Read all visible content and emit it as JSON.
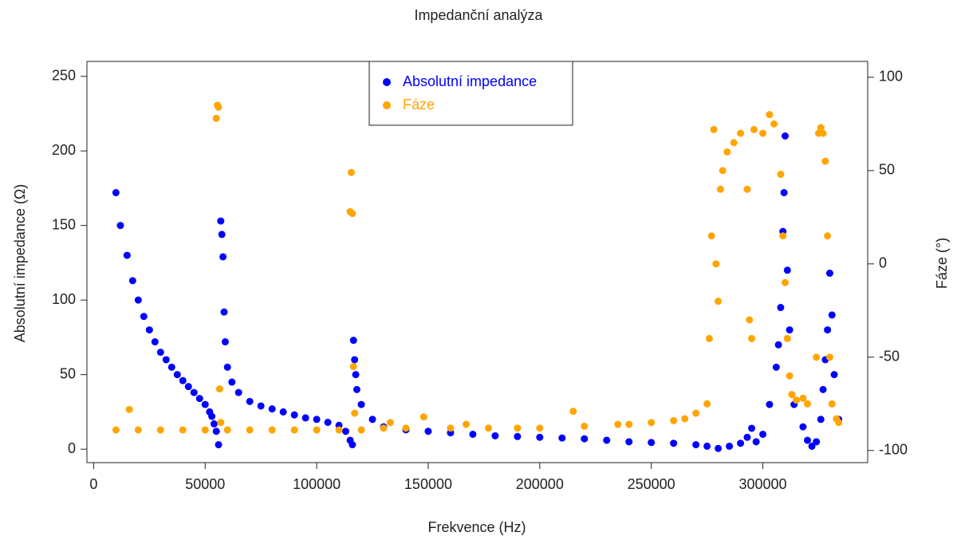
{
  "chart_data": {
    "type": "scatter",
    "title": "Impedanční analýza",
    "x_label": "Frekvence (Hz)",
    "y_label": "Absolutní impedance (Ω)",
    "y2_label": "Fáze (°)",
    "xlim": [
      -3000,
      347000
    ],
    "xticks": [
      0,
      50000,
      100000,
      150000,
      200000,
      250000,
      300000
    ],
    "ylim": [
      -9,
      260
    ],
    "yticks": [
      0,
      50,
      100,
      150,
      200,
      250
    ],
    "y2lim": [
      -106.5,
      108.5
    ],
    "y2ticks": [
      -100,
      -50,
      0,
      50,
      100
    ],
    "legend": "top",
    "series": [
      {
        "name": "Absolutní impedance",
        "color": "#0000ff",
        "x": [
          10000,
          12000,
          15000,
          17500,
          20000,
          22500,
          25000,
          27500,
          30000,
          32500,
          35000,
          37500,
          40000,
          42500,
          45000,
          47500,
          50000,
          52000,
          53000,
          54000,
          55000,
          56000,
          57000,
          57500,
          58000,
          58500,
          59000,
          60000,
          62000,
          65000,
          70000,
          75000,
          80000,
          85000,
          90000,
          95000,
          100000,
          105000,
          110000,
          113000,
          115000,
          116000,
          116500,
          117000,
          117500,
          118000,
          120000,
          125000,
          130000,
          140000,
          150000,
          160000,
          170000,
          180000,
          190000,
          200000,
          210000,
          220000,
          230000,
          240000,
          250000,
          260000,
          270000,
          275000,
          280000,
          285000,
          290000,
          293000,
          295000,
          297000,
          300000,
          303000,
          306000,
          307000,
          308000,
          309000,
          309500,
          310000,
          311000,
          312000,
          314000,
          318000,
          320000,
          322000,
          324000,
          326000,
          327000,
          328000,
          329000,
          330000,
          331000,
          332000,
          334000
        ],
        "values": [
          172,
          150,
          130,
          113,
          100,
          89,
          80,
          72,
          65,
          60,
          55,
          50,
          46,
          42,
          38,
          34,
          30,
          25,
          22,
          17,
          12,
          3,
          153,
          144,
          129,
          92,
          72,
          55,
          45,
          38,
          32,
          29,
          27,
          25,
          23,
          21,
          20,
          18,
          16,
          12,
          6,
          3,
          73,
          60,
          50,
          40,
          30,
          20,
          15,
          13,
          12,
          11,
          10,
          9,
          8.5,
          8,
          7.5,
          7,
          6,
          5,
          4.5,
          4,
          3,
          2,
          0.5,
          2,
          4,
          8,
          14,
          5,
          10,
          30,
          55,
          70,
          95,
          146,
          172,
          210,
          120,
          80,
          30,
          15,
          6,
          2,
          5,
          20,
          40,
          60,
          80,
          118,
          90,
          50,
          20
        ]
      },
      {
        "name": "Fáze",
        "color": "#ffa500",
        "axis": "y2",
        "x": [
          10000,
          16000,
          20000,
          30000,
          40000,
          50000,
          55000,
          55500,
          56000,
          56500,
          57000,
          60000,
          70000,
          80000,
          90000,
          100000,
          110000,
          115000,
          115500,
          116000,
          116500,
          117000,
          120000,
          130000,
          133000,
          140000,
          148000,
          160000,
          167000,
          177000,
          190000,
          200000,
          215000,
          220000,
          235000,
          240000,
          250000,
          260000,
          265000,
          270000,
          275000,
          276000,
          277000,
          278000,
          279000,
          280000,
          281000,
          282000,
          284000,
          287000,
          290000,
          293000,
          294000,
          295000,
          296000,
          300000,
          303000,
          305000,
          308000,
          309000,
          310000,
          311000,
          312000,
          313000,
          315000,
          318000,
          320000,
          324000,
          325000,
          326000,
          327000,
          328000,
          329000,
          330000,
          331000,
          333000,
          334000
        ],
        "values": [
          -89,
          -78,
          -89,
          -89,
          -89,
          -89,
          78,
          85,
          84,
          -67,
          -85,
          -89,
          -89,
          -89,
          -89,
          -89,
          -89,
          28,
          49,
          27,
          -55,
          -80,
          -89,
          -88,
          -85,
          -88,
          -82,
          -88,
          -86,
          -88,
          -88,
          -88,
          -79,
          -87,
          -86,
          -86,
          -85,
          -84,
          -83,
          -80,
          -75,
          -40,
          15,
          72,
          0,
          -20,
          40,
          50,
          60,
          65,
          70,
          40,
          -30,
          -40,
          72,
          70,
          80,
          75,
          48,
          15,
          -10,
          -40,
          -60,
          -70,
          -73,
          -72,
          -75,
          -50,
          70,
          73,
          70,
          55,
          15,
          -50,
          -75,
          -83,
          -85
        ]
      }
    ]
  }
}
